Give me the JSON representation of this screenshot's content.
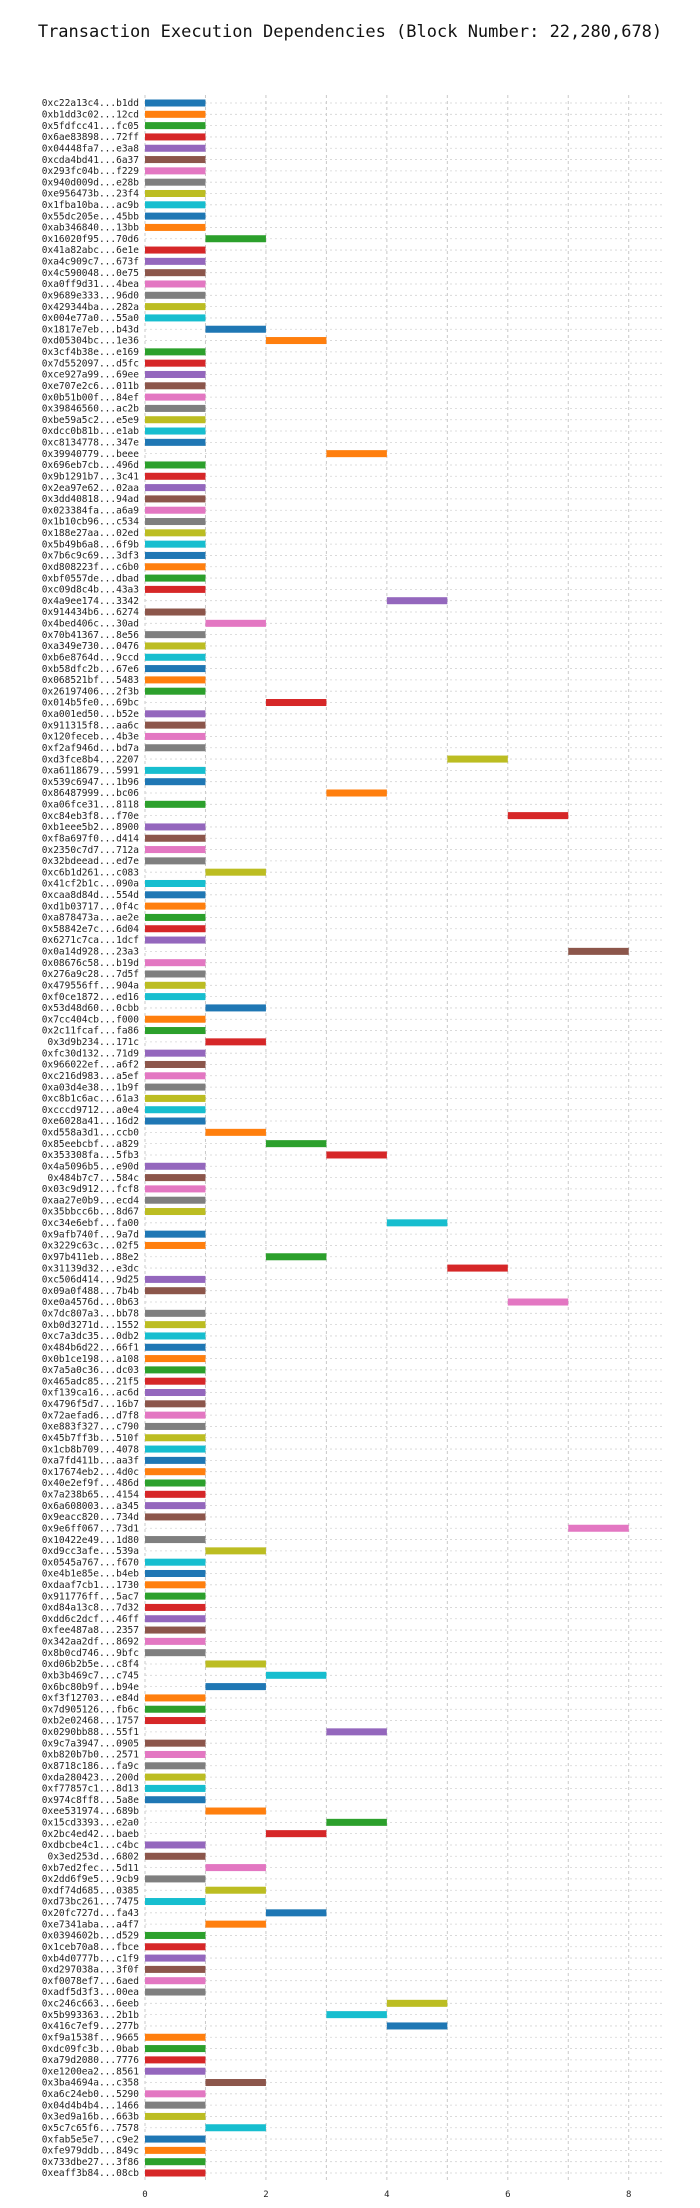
{
  "chart_data": {
    "type": "bar",
    "title": "Transaction Execution Dependencies (Block Number: 22,280,678)",
    "xlabel": "",
    "ylabel": "",
    "xlim": [
      0,
      8.6
    ],
    "x_ticks": [
      0,
      2,
      4,
      6,
      8
    ],
    "grid": true,
    "palette": [
      "#1f77b4",
      "#ff7f0e",
      "#2ca02c",
      "#d62728",
      "#9467bd",
      "#8c564b",
      "#e377c2",
      "#7f7f7f",
      "#bcbd22",
      "#17becf"
    ],
    "transactions": [
      {
        "label": "0xc22a13c4...b1dd",
        "start": 0,
        "end": 1
      },
      {
        "label": "0xb1dd3c02...12cd",
        "start": 0,
        "end": 1
      },
      {
        "label": "0x5fdfcc41...fc05",
        "start": 0,
        "end": 1
      },
      {
        "label": "0x6ae83898...72ff",
        "start": 0,
        "end": 1
      },
      {
        "label": "0x04448fa7...e3a8",
        "start": 0,
        "end": 1
      },
      {
        "label": "0xcda4bd41...6a37",
        "start": 0,
        "end": 1
      },
      {
        "label": "0x293fc04b...f229",
        "start": 0,
        "end": 1
      },
      {
        "label": "0x940d009d...e28b",
        "start": 0,
        "end": 1
      },
      {
        "label": "0xe956473b...23f4",
        "start": 0,
        "end": 1
      },
      {
        "label": "0x1fba10ba...ac9b",
        "start": 0,
        "end": 1
      },
      {
        "label": "0x55dc205e...45bb",
        "start": 0,
        "end": 1
      },
      {
        "label": "0xab346840...13bb",
        "start": 0,
        "end": 1
      },
      {
        "label": "0x16020f95...70d6",
        "start": 1,
        "end": 2
      },
      {
        "label": "0x41a82abc...6e1e",
        "start": 0,
        "end": 1
      },
      {
        "label": "0xa4c909c7...673f",
        "start": 0,
        "end": 1
      },
      {
        "label": "0x4c590048...0e75",
        "start": 0,
        "end": 1
      },
      {
        "label": "0xa0ff9d31...4bea",
        "start": 0,
        "end": 1
      },
      {
        "label": "0x9689e333...96d0",
        "start": 0,
        "end": 1
      },
      {
        "label": "0x429344ba...282a",
        "start": 0,
        "end": 1
      },
      {
        "label": "0x004e77a0...55a0",
        "start": 0,
        "end": 1
      },
      {
        "label": "0x1817e7eb...b43d",
        "start": 1,
        "end": 2
      },
      {
        "label": "0xd05304bc...1e36",
        "start": 2,
        "end": 3
      },
      {
        "label": "0x3cf4b38e...e169",
        "start": 0,
        "end": 1
      },
      {
        "label": "0x7d552097...d5fc",
        "start": 0,
        "end": 1
      },
      {
        "label": "0xce927a99...69ee",
        "start": 0,
        "end": 1
      },
      {
        "label": "0xe707e2c6...011b",
        "start": 0,
        "end": 1
      },
      {
        "label": "0x0b51b00f...84ef",
        "start": 0,
        "end": 1
      },
      {
        "label": "0x39846560...ac2b",
        "start": 0,
        "end": 1
      },
      {
        "label": "0xbe59a5c2...e5e9",
        "start": 0,
        "end": 1
      },
      {
        "label": "0xdcc0b81b...e1ab",
        "start": 0,
        "end": 1
      },
      {
        "label": "0xc8134778...347e",
        "start": 0,
        "end": 1
      },
      {
        "label": "0x39940779...beee",
        "start": 3,
        "end": 4
      },
      {
        "label": "0x696eb7cb...496d",
        "start": 0,
        "end": 1
      },
      {
        "label": "0x9b1291b7...3c41",
        "start": 0,
        "end": 1
      },
      {
        "label": "0x2ea97e62...02aa",
        "start": 0,
        "end": 1
      },
      {
        "label": "0x3dd40818...94ad",
        "start": 0,
        "end": 1
      },
      {
        "label": "0x023384fa...a6a9",
        "start": 0,
        "end": 1
      },
      {
        "label": "0x1b10cb96...c534",
        "start": 0,
        "end": 1
      },
      {
        "label": "0x188e27aa...02ed",
        "start": 0,
        "end": 1
      },
      {
        "label": "0x5b49b6a8...6f9b",
        "start": 0,
        "end": 1
      },
      {
        "label": "0x7b6c9c69...3df3",
        "start": 0,
        "end": 1
      },
      {
        "label": "0xd808223f...c6b0",
        "start": 0,
        "end": 1
      },
      {
        "label": "0xbf0557de...dbad",
        "start": 0,
        "end": 1
      },
      {
        "label": "0xc09d8c4b...43a3",
        "start": 0,
        "end": 1
      },
      {
        "label": "0x4a9ee174...3342",
        "start": 4,
        "end": 5
      },
      {
        "label": "0x914434b6...6274",
        "start": 0,
        "end": 1
      },
      {
        "label": "0x4bed406c...30ad",
        "start": 1,
        "end": 2
      },
      {
        "label": "0x70b41367...8e56",
        "start": 0,
        "end": 1
      },
      {
        "label": "0xa349e730...0476",
        "start": 0,
        "end": 1
      },
      {
        "label": "0xb6e8764d...9ccd",
        "start": 0,
        "end": 1
      },
      {
        "label": "0xb58dfc2b...67e6",
        "start": 0,
        "end": 1
      },
      {
        "label": "0x068521bf...5483",
        "start": 0,
        "end": 1
      },
      {
        "label": "0x26197406...2f3b",
        "start": 0,
        "end": 1
      },
      {
        "label": "0x014b5fe0...69bc",
        "start": 2,
        "end": 3
      },
      {
        "label": "0xa001ed50...b52e",
        "start": 0,
        "end": 1
      },
      {
        "label": "0x911315f8...aa6c",
        "start": 0,
        "end": 1
      },
      {
        "label": "0x120feceb...4b3e",
        "start": 0,
        "end": 1
      },
      {
        "label": "0xf2af946d...bd7a",
        "start": 0,
        "end": 1
      },
      {
        "label": "0xd3fce8b4...2207",
        "start": 5,
        "end": 6
      },
      {
        "label": "0xa6118679...5991",
        "start": 0,
        "end": 1
      },
      {
        "label": "0x539c6947...1b96",
        "start": 0,
        "end": 1
      },
      {
        "label": "0x86487999...bc06",
        "start": 3,
        "end": 4
      },
      {
        "label": "0xa06fce31...8118",
        "start": 0,
        "end": 1
      },
      {
        "label": "0xc84eb3f8...f70e",
        "start": 6,
        "end": 7
      },
      {
        "label": "0xb1eee5b2...8900",
        "start": 0,
        "end": 1
      },
      {
        "label": "0xf8a697f0...d414",
        "start": 0,
        "end": 1
      },
      {
        "label": "0x2350c7d7...712a",
        "start": 0,
        "end": 1
      },
      {
        "label": "0x32bdeead...ed7e",
        "start": 0,
        "end": 1
      },
      {
        "label": "0xc6b1d261...c083",
        "start": 1,
        "end": 2
      },
      {
        "label": "0x41cf2b1c...090a",
        "start": 0,
        "end": 1
      },
      {
        "label": "0xcaa8d84d...554d",
        "start": 0,
        "end": 1
      },
      {
        "label": "0xd1b03717...0f4c",
        "start": 0,
        "end": 1
      },
      {
        "label": "0xa878473a...ae2e",
        "start": 0,
        "end": 1
      },
      {
        "label": "0x58842e7c...6d04",
        "start": 0,
        "end": 1
      },
      {
        "label": "0x6271c7ca...1dcf",
        "start": 0,
        "end": 1
      },
      {
        "label": "0x0a14d928...23a3",
        "start": 7,
        "end": 8
      },
      {
        "label": "0x08676c58...b19d",
        "start": 0,
        "end": 1
      },
      {
        "label": "0x276a9c28...7d5f",
        "start": 0,
        "end": 1
      },
      {
        "label": "0x479556ff...904a",
        "start": 0,
        "end": 1
      },
      {
        "label": "0xf0ce1872...ed16",
        "start": 0,
        "end": 1
      },
      {
        "label": "0x53d48d60...0cbb",
        "start": 1,
        "end": 2
      },
      {
        "label": "0x7cc404cb...f000",
        "start": 0,
        "end": 1
      },
      {
        "label": "0x2c11fcaf...fa86",
        "start": 0,
        "end": 1
      },
      {
        "label": "0x3d9b234...171c",
        "start": 1,
        "end": 2
      },
      {
        "label": "0xfc30d132...71d9",
        "start": 0,
        "end": 1
      },
      {
        "label": "0x966022ef...a6f2",
        "start": 0,
        "end": 1
      },
      {
        "label": "0xc216d983...a5ef",
        "start": 0,
        "end": 1
      },
      {
        "label": "0xa03d4e38...1b9f",
        "start": 0,
        "end": 1
      },
      {
        "label": "0xc8b1c6ac...61a3",
        "start": 0,
        "end": 1
      },
      {
        "label": "0xcccd9712...a0e4",
        "start": 0,
        "end": 1
      },
      {
        "label": "0xe6028a41...16d2",
        "start": 0,
        "end": 1
      },
      {
        "label": "0xd558a3d1...ccb0",
        "start": 1,
        "end": 2
      },
      {
        "label": "0x85eebcbf...a829",
        "start": 2,
        "end": 3
      },
      {
        "label": "0x353308fa...5fb3",
        "start": 3,
        "end": 4
      },
      {
        "label": "0x4a5096b5...e90d",
        "start": 0,
        "end": 1
      },
      {
        "label": "0x484b7c7...584c",
        "start": 0,
        "end": 1
      },
      {
        "label": "0x03c9d912...fcf8",
        "start": 0,
        "end": 1
      },
      {
        "label": "0xaa27e0b9...ecd4",
        "start": 0,
        "end": 1
      },
      {
        "label": "0x35bbcc6b...8d67",
        "start": 0,
        "end": 1
      },
      {
        "label": "0xc34e6ebf...fa00",
        "start": 4,
        "end": 5
      },
      {
        "label": "0x9afb740f...9a7d",
        "start": 0,
        "end": 1
      },
      {
        "label": "0x3229c63c...02f5",
        "start": 0,
        "end": 1
      },
      {
        "label": "0x97b411eb...88e2",
        "start": 2,
        "end": 3
      },
      {
        "label": "0x31139d32...e3dc",
        "start": 5,
        "end": 6
      },
      {
        "label": "0xc506d414...9d25",
        "start": 0,
        "end": 1
      },
      {
        "label": "0x09a0f488...7b4b",
        "start": 0,
        "end": 1
      },
      {
        "label": "0xe0a4576d...0b63",
        "start": 6,
        "end": 7
      },
      {
        "label": "0x7dc807a3...bb78",
        "start": 0,
        "end": 1
      },
      {
        "label": "0xb0d3271d...1552",
        "start": 0,
        "end": 1
      },
      {
        "label": "0xc7a3dc35...0db2",
        "start": 0,
        "end": 1
      },
      {
        "label": "0x484b6d22...66f1",
        "start": 0,
        "end": 1
      },
      {
        "label": "0x0b1ce198...a108",
        "start": 0,
        "end": 1
      },
      {
        "label": "0x7a5a0c36...dc03",
        "start": 0,
        "end": 1
      },
      {
        "label": "0x465adc85...21f5",
        "start": 0,
        "end": 1
      },
      {
        "label": "0xf139ca16...ac6d",
        "start": 0,
        "end": 1
      },
      {
        "label": "0x4796f5d7...16b7",
        "start": 0,
        "end": 1
      },
      {
        "label": "0x72aefad6...d7f8",
        "start": 0,
        "end": 1
      },
      {
        "label": "0xe883f327...c790",
        "start": 0,
        "end": 1
      },
      {
        "label": "0x45b7ff3b...510f",
        "start": 0,
        "end": 1
      },
      {
        "label": "0x1cb8b709...4078",
        "start": 0,
        "end": 1
      },
      {
        "label": "0xa7fd411b...aa3f",
        "start": 0,
        "end": 1
      },
      {
        "label": "0x17674eb2...4d0c",
        "start": 0,
        "end": 1
      },
      {
        "label": "0x40e2ef9f...486d",
        "start": 0,
        "end": 1
      },
      {
        "label": "0x7a238b65...4154",
        "start": 0,
        "end": 1
      },
      {
        "label": "0x6a608003...a345",
        "start": 0,
        "end": 1
      },
      {
        "label": "0x9eacc820...734d",
        "start": 0,
        "end": 1
      },
      {
        "label": "0x9e6ff067...73d1",
        "start": 7,
        "end": 8
      },
      {
        "label": "0x10422e49...1d80",
        "start": 0,
        "end": 1
      },
      {
        "label": "0xd9cc3afe...539a",
        "start": 1,
        "end": 2
      },
      {
        "label": "0x0545a767...f670",
        "start": 0,
        "end": 1
      },
      {
        "label": "0xe4b1e85e...b4eb",
        "start": 0,
        "end": 1
      },
      {
        "label": "0xdaaf7cb1...1730",
        "start": 0,
        "end": 1
      },
      {
        "label": "0x911776ff...5ac7",
        "start": 0,
        "end": 1
      },
      {
        "label": "0xd84a13c8...7d32",
        "start": 0,
        "end": 1
      },
      {
        "label": "0xdd6c2dcf...46ff",
        "start": 0,
        "end": 1
      },
      {
        "label": "0xfee487a8...2357",
        "start": 0,
        "end": 1
      },
      {
        "label": "0x342aa2df...8692",
        "start": 0,
        "end": 1
      },
      {
        "label": "0x8b0cd746...9bfc",
        "start": 0,
        "end": 1
      },
      {
        "label": "0xd06b2b5e...c8f4",
        "start": 1,
        "end": 2
      },
      {
        "label": "0xb3b469c7...c745",
        "start": 2,
        "end": 3
      },
      {
        "label": "0x6bc80b9f...b94e",
        "start": 1,
        "end": 2
      },
      {
        "label": "0xf3f12703...e84d",
        "start": 0,
        "end": 1
      },
      {
        "label": "0x7d905126...fb6c",
        "start": 0,
        "end": 1
      },
      {
        "label": "0xb2e02468...1757",
        "start": 0,
        "end": 1
      },
      {
        "label": "0x0290bb88...55f1",
        "start": 3,
        "end": 4
      },
      {
        "label": "0x9c7a3947...0905",
        "start": 0,
        "end": 1
      },
      {
        "label": "0xb820b7b0...2571",
        "start": 0,
        "end": 1
      },
      {
        "label": "0x8718c186...fa9c",
        "start": 0,
        "end": 1
      },
      {
        "label": "0xda280423...200d",
        "start": 0,
        "end": 1
      },
      {
        "label": "0xf77857c1...8d13",
        "start": 0,
        "end": 1
      },
      {
        "label": "0x974c8ff8...5a8e",
        "start": 0,
        "end": 1
      },
      {
        "label": "0xee531974...689b",
        "start": 1,
        "end": 2
      },
      {
        "label": "0x15cd3393...e2a0",
        "start": 3,
        "end": 4
      },
      {
        "label": "0x2bc4ed42...baeb",
        "start": 2,
        "end": 3
      },
      {
        "label": "0xdbcbe4c1...c4bc",
        "start": 0,
        "end": 1
      },
      {
        "label": "0x3ed253d...6802",
        "start": 0,
        "end": 1
      },
      {
        "label": "0xb7ed2fec...5d11",
        "start": 1,
        "end": 2
      },
      {
        "label": "0x2dd6f9e5...9cb9",
        "start": 0,
        "end": 1
      },
      {
        "label": "0xdf74d685...0385",
        "start": 1,
        "end": 2
      },
      {
        "label": "0xd73bc261...7475",
        "start": 0,
        "end": 1
      },
      {
        "label": "0x20fc727d...fa43",
        "start": 2,
        "end": 3
      },
      {
        "label": "0xe7341aba...a4f7",
        "start": 1,
        "end": 2
      },
      {
        "label": "0x0394602b...d529",
        "start": 0,
        "end": 1
      },
      {
        "label": "0x1ceb70a8...fbce",
        "start": 0,
        "end": 1
      },
      {
        "label": "0xb4d0777b...c1f9",
        "start": 0,
        "end": 1
      },
      {
        "label": "0xd297038a...3f0f",
        "start": 0,
        "end": 1
      },
      {
        "label": "0xf0078ef7...6aed",
        "start": 0,
        "end": 1
      },
      {
        "label": "0xadf5d3f3...00ea",
        "start": 0,
        "end": 1
      },
      {
        "label": "0xc246c663...6eeb",
        "start": 4,
        "end": 5
      },
      {
        "label": "0x5b993363...2b1b",
        "start": 3,
        "end": 4
      },
      {
        "label": "0x416c7ef9...277b",
        "start": 4,
        "end": 5
      },
      {
        "label": "0xf9a1538f...9665",
        "start": 0,
        "end": 1
      },
      {
        "label": "0xdc09fc3b...0bab",
        "start": 0,
        "end": 1
      },
      {
        "label": "0xa79d2080...7776",
        "start": 0,
        "end": 1
      },
      {
        "label": "0xe1200ea2...8561",
        "start": 0,
        "end": 1
      },
      {
        "label": "0x3ba4694a...c358",
        "start": 1,
        "end": 2
      },
      {
        "label": "0xa6c24eb0...5290",
        "start": 0,
        "end": 1
      },
      {
        "label": "0x04d4b4b4...1466",
        "start": 0,
        "end": 1
      },
      {
        "label": "0x3ed9a16b...663b",
        "start": 0,
        "end": 1
      },
      {
        "label": "0x5c7c65f6...7578",
        "start": 1,
        "end": 2
      },
      {
        "label": "0xfab5e5e7...c9e2",
        "start": 0,
        "end": 1
      },
      {
        "label": "0xfe979ddb...849c",
        "start": 0,
        "end": 1
      },
      {
        "label": "0x733dbe27...3f86",
        "start": 0,
        "end": 1
      },
      {
        "label": "0xeaff3b84...08cb",
        "start": 0,
        "end": 1
      }
    ]
  }
}
